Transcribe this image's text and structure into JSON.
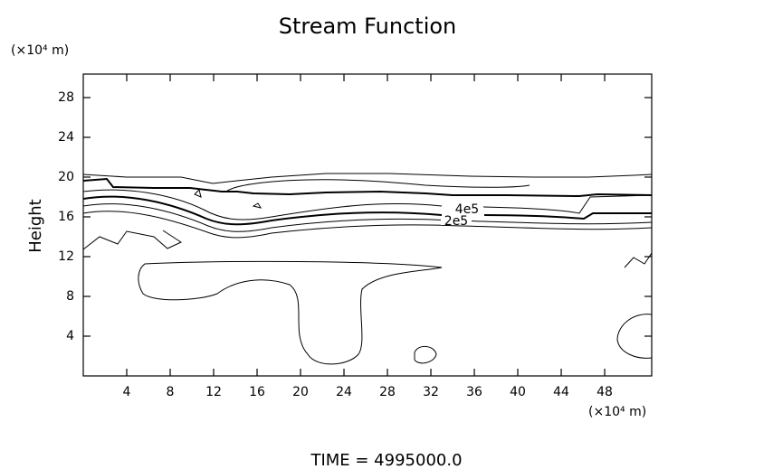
{
  "chart_data": {
    "type": "contour",
    "title": "Stream Function",
    "y_unit": "(×10⁴ m)",
    "x_unit": "(×10⁴ m)",
    "ylabel": "Height",
    "footer": "TIME = 4995000.0",
    "contour_labels": [
      "4e5",
      "2e5"
    ],
    "xlim": [
      0,
      52.33
    ],
    "ylim": [
      0,
      30.36
    ],
    "xticks": [
      4,
      8,
      12,
      16,
      20,
      24,
      28,
      32,
      36,
      40,
      44,
      48
    ],
    "yticks": [
      4,
      8,
      12,
      16,
      20,
      24,
      28
    ]
  }
}
